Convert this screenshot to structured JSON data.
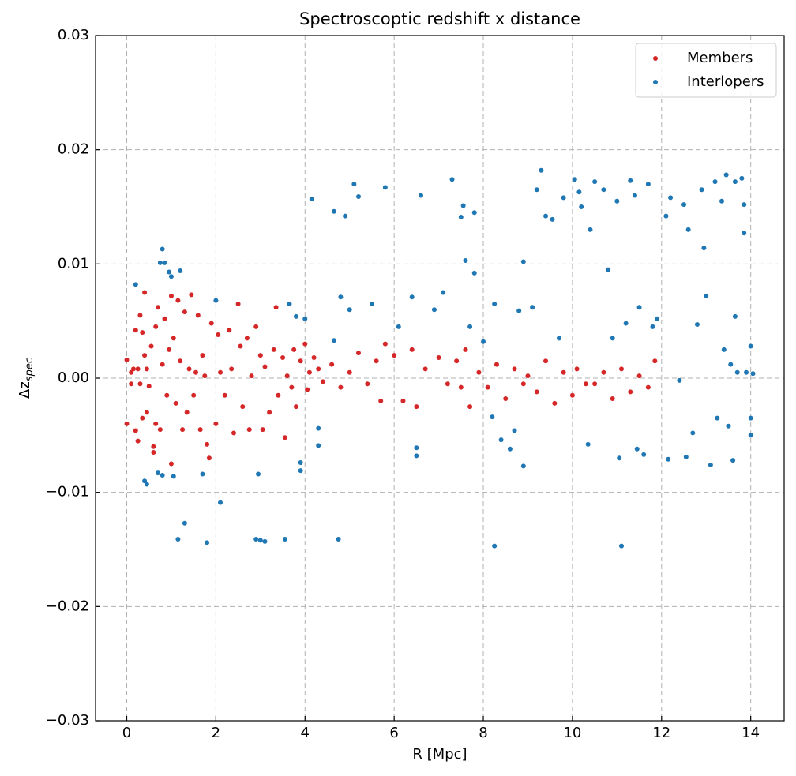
{
  "chart_data": {
    "type": "scatter",
    "title": "Spectroscoptic redshift x distance",
    "xlabel": "R [Mpc]",
    "ylabel": {
      "main": "Δz",
      "sub": "spec"
    },
    "xlim": [
      -0.7,
      14.75
    ],
    "ylim": [
      -0.03,
      0.03
    ],
    "xticks": [
      0,
      2,
      4,
      6,
      8,
      10,
      12,
      14
    ],
    "yticks": [
      {
        "value": -0.03,
        "label": "−0.03"
      },
      {
        "value": -0.02,
        "label": "−0.02"
      },
      {
        "value": -0.01,
        "label": "−0.01"
      },
      {
        "value": 0,
        "label": "0.00"
      },
      0.01,
      0.02,
      0.03
    ],
    "grid": true,
    "legend": "upper right",
    "series": [
      {
        "name": "Members",
        "color": "#d62728",
        "x": [
          0.0,
          0.0,
          0.1,
          0.1,
          0.15,
          0.2,
          0.2,
          0.25,
          0.25,
          0.3,
          0.3,
          0.35,
          0.35,
          0.4,
          0.4,
          0.45,
          0.45,
          0.5,
          0.55,
          0.6,
          0.6,
          0.65,
          0.65,
          0.7,
          0.75,
          0.8,
          0.85,
          0.9,
          0.95,
          1.0,
          1.0,
          1.05,
          1.1,
          1.15,
          1.2,
          1.25,
          1.3,
          1.35,
          1.4,
          1.45,
          1.5,
          1.55,
          1.6,
          1.65,
          1.7,
          1.75,
          1.8,
          1.85,
          1.9,
          2.0,
          2.05,
          2.1,
          2.2,
          2.3,
          2.35,
          2.4,
          2.5,
          2.55,
          2.6,
          2.7,
          2.75,
          2.8,
          2.9,
          3.0,
          3.05,
          3.1,
          3.2,
          3.3,
          3.35,
          3.4,
          3.5,
          3.55,
          3.6,
          3.7,
          3.75,
          3.8,
          3.9,
          4.0,
          4.05,
          4.1,
          4.2,
          4.3,
          4.4,
          4.6,
          4.8,
          5.0,
          5.2,
          5.4,
          5.6,
          5.7,
          5.8,
          6.0,
          6.2,
          6.4,
          6.5,
          6.7,
          7.0,
          7.2,
          7.4,
          7.5,
          7.6,
          7.7,
          7.9,
          8.1,
          8.3,
          8.5,
          8.7,
          8.9,
          9.0,
          9.2,
          9.4,
          9.6,
          9.8,
          10.0,
          10.1,
          10.3,
          10.5,
          10.7,
          10.9,
          11.1,
          11.3,
          11.5,
          11.7,
          11.85
        ],
        "values": [
          0.0016,
          -0.004,
          -0.0005,
          0.0005,
          0.0008,
          -0.0046,
          0.0042,
          -0.0055,
          0.0008,
          0.0055,
          -0.0005,
          0.004,
          -0.0035,
          0.0075,
          0.002,
          -0.003,
          0.0008,
          -0.0007,
          0.0028,
          -0.0065,
          -0.006,
          0.0045,
          -0.004,
          0.0062,
          -0.0045,
          0.0012,
          0.0052,
          -0.0015,
          0.0025,
          -0.0075,
          0.0072,
          0.0035,
          -0.0022,
          0.0068,
          0.0015,
          -0.0045,
          0.0058,
          -0.003,
          0.0008,
          0.0073,
          -0.0015,
          0.0005,
          0.0055,
          -0.0045,
          0.002,
          0.0002,
          -0.0058,
          -0.007,
          0.0048,
          -0.004,
          0.0038,
          0.0005,
          -0.0015,
          0.0042,
          0.0008,
          -0.0048,
          0.0065,
          0.0028,
          -0.0025,
          0.0035,
          -0.0045,
          0.0002,
          0.0045,
          0.002,
          -0.0045,
          0.001,
          -0.003,
          0.0025,
          0.0062,
          -0.0015,
          0.0018,
          -0.0052,
          0.0002,
          -0.0008,
          0.0025,
          -0.0025,
          0.0015,
          0.003,
          -0.001,
          0.0005,
          0.0018,
          0.0008,
          -0.0003,
          0.0012,
          -0.0008,
          0.0005,
          0.0022,
          -0.0005,
          0.0015,
          -0.002,
          0.003,
          0.002,
          -0.002,
          0.0025,
          -0.0025,
          0.0008,
          0.0018,
          -0.0005,
          0.0015,
          -0.0008,
          0.0025,
          -0.0025,
          0.0005,
          -0.0008,
          0.0012,
          -0.0018,
          0.0008,
          -0.0005,
          0.0002,
          -0.0012,
          0.0015,
          -0.0022,
          0.0005,
          -0.0015,
          0.0008,
          -0.0005,
          -0.0005,
          0.0005,
          -0.0018,
          0.0008,
          -0.0012,
          0.0002,
          -0.0008,
          0.0015
        ]
      },
      {
        "name": "Interlopers",
        "color": "#1f77b4",
        "x": [
          0.2,
          0.4,
          0.45,
          0.7,
          0.8,
          0.75,
          0.85,
          0.8,
          0.95,
          1.0,
          1.05,
          1.2,
          1.15,
          1.3,
          1.7,
          1.8,
          2.0,
          2.1,
          2.9,
          2.95,
          3.0,
          3.1,
          3.55,
          3.65,
          3.8,
          3.9,
          3.9,
          4.0,
          4.15,
          4.3,
          4.3,
          4.65,
          4.65,
          4.75,
          4.8,
          4.9,
          5.0,
          5.1,
          5.2,
          5.5,
          5.8,
          6.1,
          6.4,
          6.5,
          6.5,
          6.6,
          6.9,
          7.1,
          7.3,
          7.5,
          7.55,
          7.6,
          7.7,
          7.8,
          7.8,
          8.0,
          8.2,
          8.25,
          8.25,
          8.4,
          8.6,
          8.7,
          8.8,
          8.9,
          8.9,
          9.1,
          9.2,
          9.3,
          9.4,
          9.55,
          9.7,
          9.8,
          10.05,
          10.15,
          10.2,
          10.35,
          10.4,
          10.5,
          10.7,
          10.8,
          10.9,
          11.0,
          11.05,
          11.1,
          11.2,
          11.3,
          11.4,
          11.45,
          11.5,
          11.6,
          11.7,
          11.8,
          11.9,
          12.1,
          12.15,
          12.2,
          12.4,
          12.5,
          12.55,
          12.6,
          12.7,
          12.8,
          12.9,
          12.95,
          13.0,
          13.1,
          13.2,
          13.25,
          13.35,
          13.4,
          13.45,
          13.5,
          13.55,
          13.6,
          13.65,
          13.65,
          13.7,
          13.8,
          13.85,
          13.9,
          14.0,
          14.0,
          14.0,
          14.05,
          13.85
        ],
        "values": [
          0.0082,
          -0.009,
          -0.0093,
          -0.0083,
          0.0113,
          0.0101,
          0.0101,
          -0.0085,
          0.0093,
          0.0089,
          -0.0086,
          0.0094,
          -0.0141,
          -0.0127,
          -0.0084,
          -0.0144,
          0.0068,
          -0.0109,
          -0.0141,
          -0.0084,
          -0.0142,
          -0.0143,
          -0.0141,
          0.0065,
          0.0054,
          -0.0074,
          -0.0081,
          0.0052,
          0.0157,
          -0.0044,
          -0.0059,
          0.0033,
          0.0146,
          -0.0141,
          0.0071,
          0.0142,
          0.006,
          0.017,
          0.0159,
          0.0065,
          0.0167,
          0.0045,
          0.0071,
          -0.0061,
          -0.0068,
          0.016,
          0.006,
          0.0075,
          0.0174,
          0.0141,
          0.0151,
          0.0103,
          0.0045,
          0.0145,
          0.0092,
          0.0032,
          -0.0034,
          0.0065,
          -0.0147,
          -0.0054,
          -0.0062,
          -0.0046,
          0.0059,
          0.0102,
          -0.0077,
          0.0062,
          0.0165,
          0.0182,
          0.0142,
          0.0139,
          0.0035,
          0.0158,
          0.0174,
          0.0163,
          0.015,
          -0.0058,
          0.013,
          0.0172,
          0.0165,
          0.0095,
          0.0035,
          0.0155,
          -0.007,
          -0.0147,
          0.0048,
          0.0173,
          0.016,
          -0.0062,
          0.0062,
          -0.0067,
          0.017,
          0.0045,
          0.0052,
          0.0142,
          -0.0071,
          0.0158,
          -0.0002,
          0.0152,
          -0.0069,
          0.013,
          -0.0048,
          0.0047,
          0.0165,
          0.0114,
          0.0072,
          -0.0076,
          0.0172,
          -0.0035,
          0.0155,
          0.0025,
          0.0178,
          -0.0042,
          0.0012,
          -0.0072,
          0.0172,
          0.0054,
          0.0005,
          0.0175,
          0.0152,
          0.0005,
          0.0028,
          -0.0035,
          -0.005,
          0.0004,
          0.0127
        ]
      }
    ]
  }
}
